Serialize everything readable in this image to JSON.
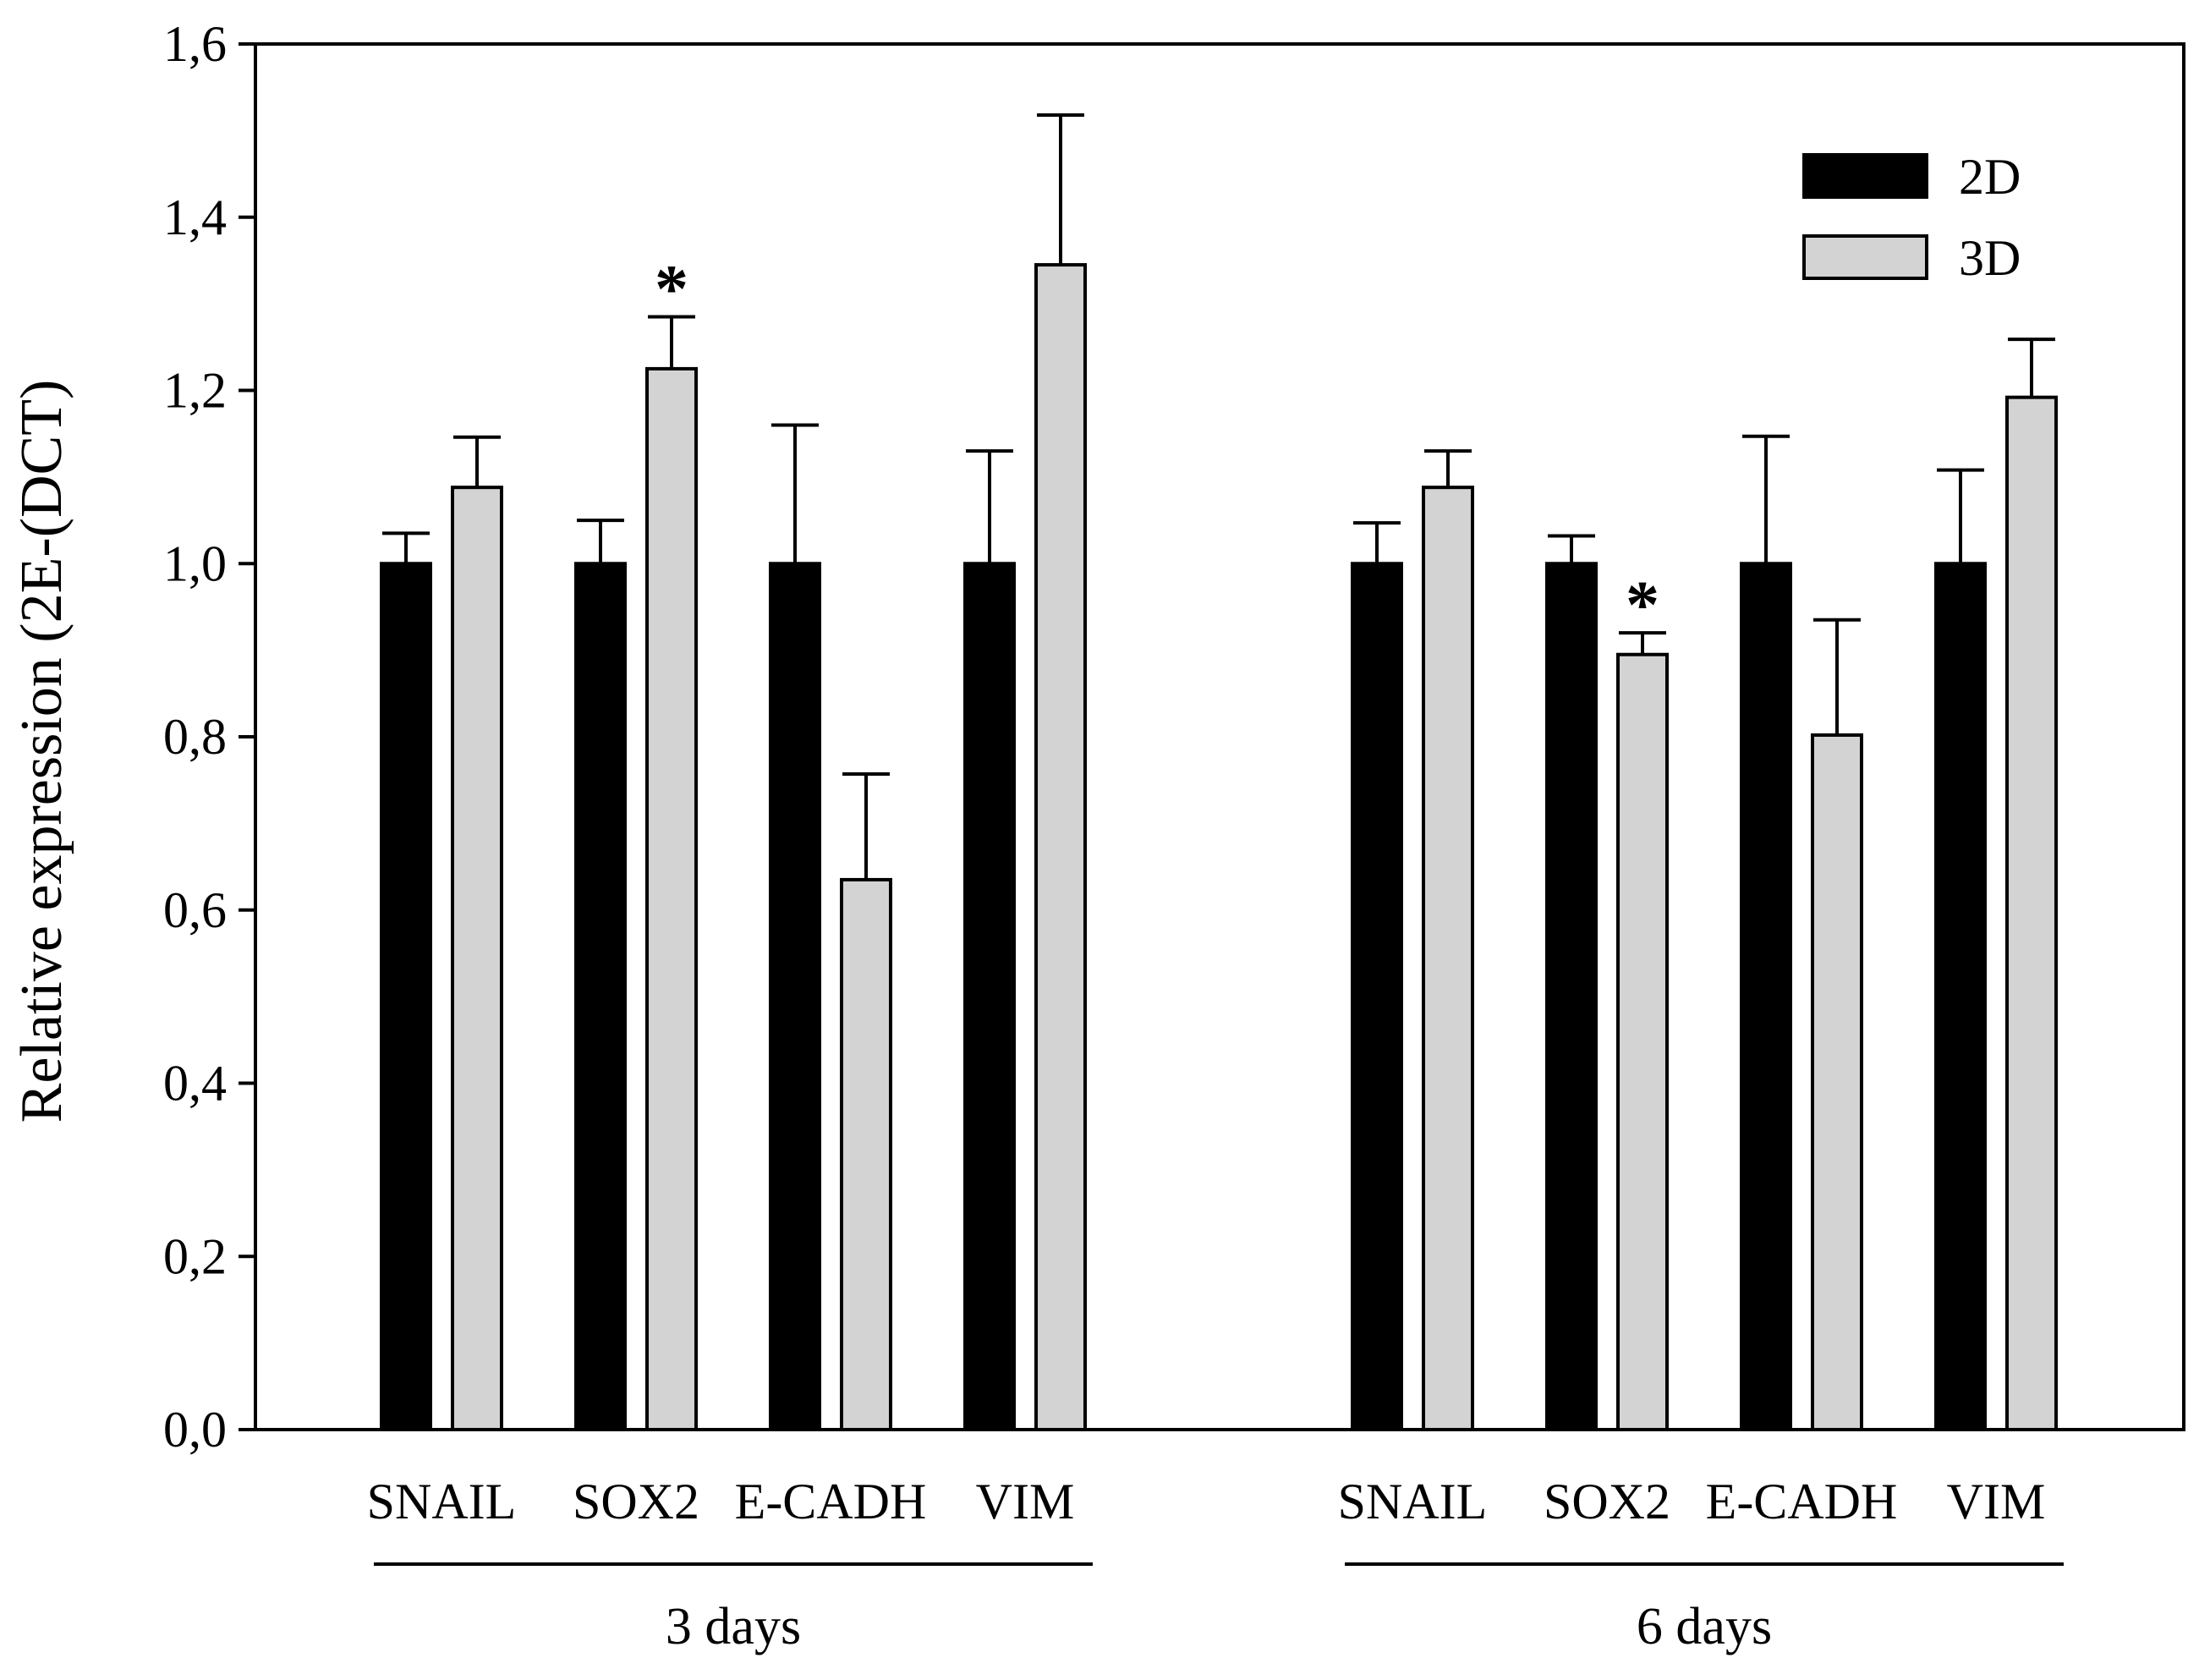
{
  "chart_data": {
    "type": "bar",
    "title": "",
    "xlabel": "",
    "ylabel": "Relative expression (2E-(DCT)",
    "ylim": [
      0,
      1.6
    ],
    "yticks": [
      "0,0",
      "0,2",
      "0,4",
      "0,6",
      "0,8",
      "1,0",
      "1,2",
      "1,4",
      "1,6"
    ],
    "legend_position": "top-right",
    "colors": {
      "2D": "#000000",
      "3D": "#d3d3d3"
    },
    "groups": [
      {
        "label": "3 days",
        "categories": [
          "SNAIL",
          "SOX2",
          "E-CADH",
          "VIM"
        ],
        "series": [
          {
            "name": "2D",
            "values": [
              1.0,
              1.0,
              1.0,
              1.0
            ],
            "errors": [
              0.035,
              0.05,
              0.16,
              0.13
            ]
          },
          {
            "name": "3D",
            "values": [
              1.088,
              1.225,
              0.635,
              1.345
            ],
            "errors": [
              0.058,
              0.06,
              0.122,
              0.173
            ]
          }
        ],
        "annotations": [
          {
            "category": "SOX2",
            "series": "3D",
            "text": "*"
          }
        ]
      },
      {
        "label": "6 days",
        "categories": [
          "SNAIL",
          "SOX2",
          "E-CADH",
          "VIM"
        ],
        "series": [
          {
            "name": "2D",
            "values": [
              1.0,
              1.0,
              1.0,
              1.0
            ],
            "errors": [
              0.047,
              0.032,
              0.147,
              0.108
            ]
          },
          {
            "name": "3D",
            "values": [
              1.088,
              0.895,
              0.802,
              1.192
            ],
            "errors": [
              0.042,
              0.025,
              0.133,
              0.067
            ]
          }
        ],
        "annotations": [
          {
            "category": "SOX2",
            "series": "3D",
            "text": "*"
          }
        ]
      }
    ]
  }
}
